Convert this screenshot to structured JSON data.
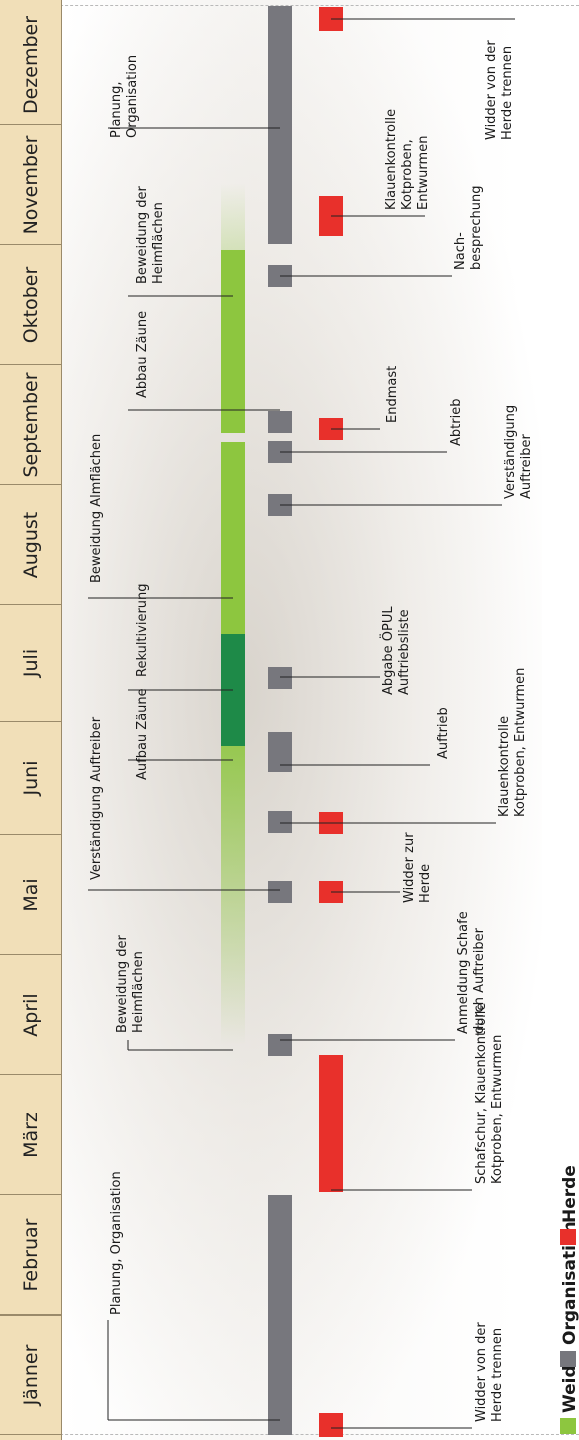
{
  "months": [
    "Jänner",
    "Februar",
    "März",
    "April",
    "Mai",
    "Juni",
    "Juli",
    "August",
    "September",
    "Oktober",
    "November",
    "Dezember"
  ],
  "legend": [
    {
      "label": "Weide",
      "color": "#8dc63f"
    },
    {
      "label": "Organisation",
      "color": "#77777d"
    },
    {
      "label": "Herde",
      "color": "#e8302b"
    }
  ],
  "colors": {
    "weide": "#8dc63f",
    "rekultivierung": "#1e8a48",
    "organisation": "#77777d",
    "herde": "#e8302b"
  },
  "weide_labels": [
    {
      "lines": [
        "Planung, Organisation"
      ]
    },
    {
      "lines": [
        "Beweidung der",
        "Heimflächen"
      ]
    },
    {
      "lines": [
        "Verständigung Auftreiber"
      ]
    },
    {
      "lines": [
        "Aufbau Zäune"
      ]
    },
    {
      "lines": [
        "Rekultivierung"
      ]
    },
    {
      "lines": [
        "Beweidung Almflächen"
      ]
    },
    {
      "lines": [
        "Abbau Zäune"
      ]
    },
    {
      "lines": [
        "Beweidung der",
        "Heimflächen"
      ]
    },
    {
      "lines": [
        "Planung,",
        "Organisation"
      ]
    }
  ],
  "bottom_labels": [
    {
      "lines": [
        "Widder von der",
        "Herde trennen"
      ]
    },
    {
      "lines": [
        "Schafschur, Klauenkontrolle",
        "Kotproben, Entwurmen"
      ]
    },
    {
      "lines": [
        "Anmeldung Schafe",
        "durch Auftreiber"
      ]
    },
    {
      "lines": [
        "Widder zur",
        "Herde"
      ]
    },
    {
      "lines": [
        "Klauenkontrolle",
        "Kotproben, Entwurmen"
      ]
    },
    {
      "lines": [
        "Auftrieb"
      ]
    },
    {
      "lines": [
        "Abgabe ÖPUL",
        "Auftriebsliste"
      ]
    },
    {
      "lines": [
        "Verständigung",
        "Auftreiber"
      ]
    },
    {
      "lines": [
        "Abtrieb"
      ]
    },
    {
      "lines": [
        "Endmast"
      ]
    },
    {
      "lines": [
        "Nach-",
        "besprechung"
      ]
    },
    {
      "lines": [
        "Klauenkontrolle",
        "Kotproben,",
        "Entwurmen"
      ]
    },
    {
      "lines": [
        "Widder von der",
        "Herde trennen"
      ]
    }
  ]
}
